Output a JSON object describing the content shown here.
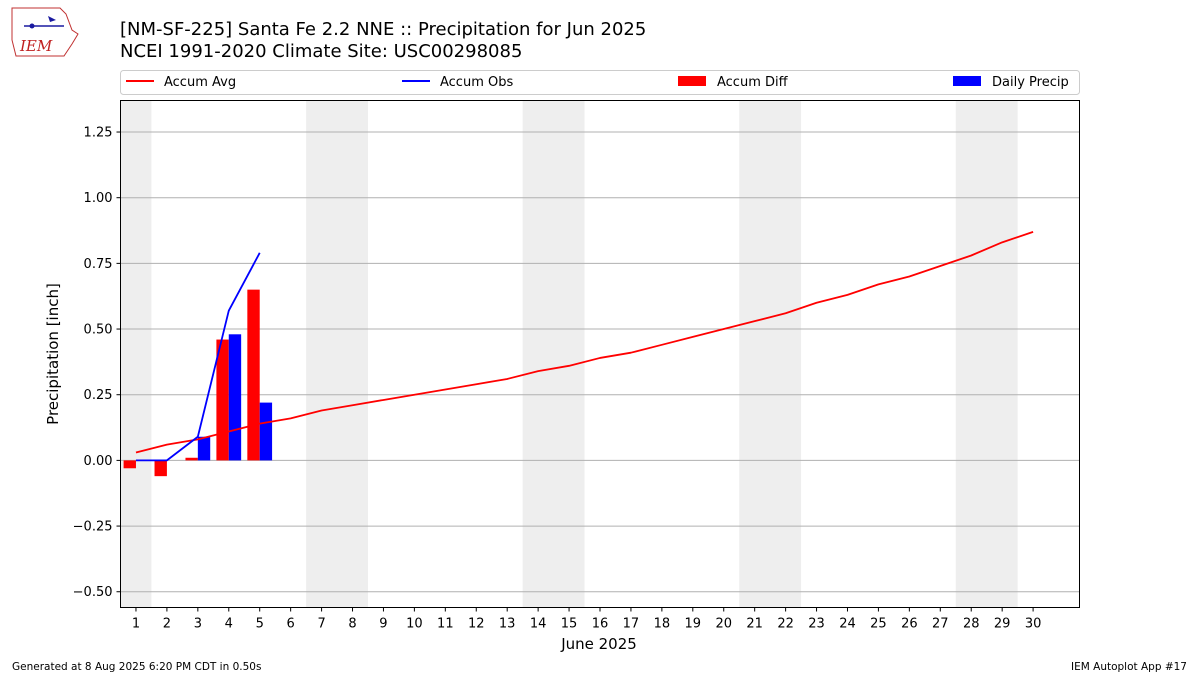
{
  "header": {
    "title_line1": "[NM-SF-225] Santa Fe 2.2 NNE :: Precipitation for Jun 2025",
    "title_line2": "NCEI 1991-2020 Climate Site: USC00298085"
  },
  "logo": {
    "text": "IEM"
  },
  "footer": {
    "left": "Generated at 8 Aug 2025 6:20 PM CDT in 0.50s",
    "right": "IEM Autoplot App #17"
  },
  "colors": {
    "accum_avg": "#ff0000",
    "accum_obs": "#0000ff",
    "accum_diff": "#ff0000",
    "daily_precip": "#0000ff",
    "weekend_band": "#eeeeee",
    "grid": "#b0b0b0"
  },
  "chart_data": {
    "type": "bar",
    "title": "[NM-SF-225] Santa Fe 2.2 NNE :: Precipitation for Jun 2025",
    "subtitle": "NCEI 1991-2020 Climate Site: USC00298085",
    "xlabel": "June 2025",
    "ylabel": "Precipitation [inch]",
    "xlim": [
      0.5,
      31.5
    ],
    "ylim": [
      -0.56,
      1.37
    ],
    "yticks": [
      -0.5,
      -0.25,
      0.0,
      0.25,
      0.5,
      0.75,
      1.0,
      1.25
    ],
    "ytick_labels": [
      "−0.50",
      "−0.25",
      "0.00",
      "0.25",
      "0.50",
      "0.75",
      "1.00",
      "1.25"
    ],
    "x_days": [
      1,
      2,
      3,
      4,
      5,
      6,
      7,
      8,
      9,
      10,
      11,
      12,
      13,
      14,
      15,
      16,
      17,
      18,
      19,
      20,
      21,
      22,
      23,
      24,
      25,
      26,
      27,
      28,
      29,
      30
    ],
    "xtick_labels": [
      "1",
      "2",
      "3",
      "4",
      "5",
      "6",
      "7",
      "8",
      "9",
      "10",
      "11",
      "12",
      "13",
      "14",
      "15",
      "16",
      "17",
      "18",
      "19",
      "20",
      "21",
      "22",
      "23",
      "24",
      "25",
      "26",
      "27",
      "28",
      "29",
      "30"
    ],
    "grid": true,
    "legend_position": "top",
    "weekend_bands": [
      [
        0.5,
        1.5
      ],
      [
        6.5,
        8.5
      ],
      [
        13.5,
        15.5
      ],
      [
        20.5,
        22.5
      ],
      [
        27.5,
        29.5
      ]
    ],
    "series": [
      {
        "name": "Accum Avg",
        "kind": "line",
        "x": [
          1,
          2,
          3,
          4,
          5,
          6,
          7,
          8,
          9,
          10,
          11,
          12,
          13,
          14,
          15,
          16,
          17,
          18,
          19,
          20,
          21,
          22,
          23,
          24,
          25,
          26,
          27,
          28,
          29,
          30
        ],
        "values": [
          0.03,
          0.06,
          0.08,
          0.11,
          0.14,
          0.16,
          0.19,
          0.21,
          0.23,
          0.25,
          0.27,
          0.29,
          0.31,
          0.34,
          0.36,
          0.39,
          0.41,
          0.44,
          0.47,
          0.5,
          0.53,
          0.56,
          0.6,
          0.63,
          0.67,
          0.7,
          0.74,
          0.78,
          0.83,
          0.87
        ]
      },
      {
        "name": "Accum Obs",
        "kind": "line",
        "x": [
          1,
          2,
          3,
          4,
          5
        ],
        "values": [
          0.0,
          0.0,
          0.09,
          0.57,
          0.79
        ]
      },
      {
        "name": "Accum Diff",
        "kind": "bar",
        "x": [
          1,
          2,
          3,
          4,
          5
        ],
        "values": [
          -0.03,
          -0.06,
          0.01,
          0.46,
          0.65
        ]
      },
      {
        "name": "Daily Precip",
        "kind": "bar",
        "x": [
          1,
          2,
          3,
          4,
          5
        ],
        "values": [
          0.0,
          0.0,
          0.09,
          0.48,
          0.22
        ]
      }
    ]
  }
}
